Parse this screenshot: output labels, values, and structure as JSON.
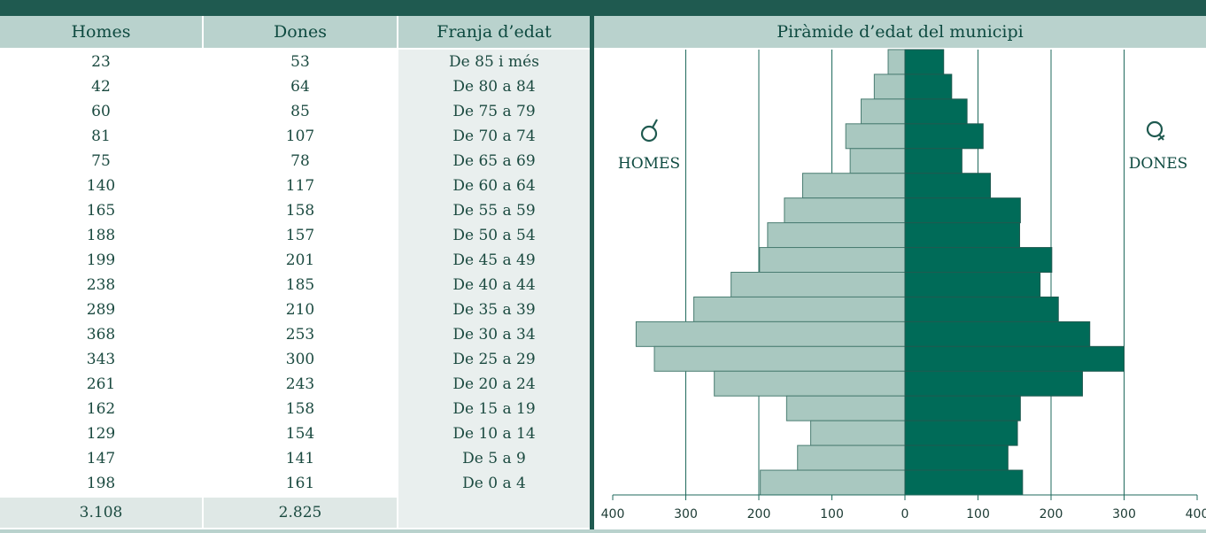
{
  "headers": {
    "homes": "Homes",
    "dones": "Dones",
    "franja": "Franja d’edat"
  },
  "totals": {
    "homes": "3.108",
    "dones": "2.825"
  },
  "rows": [
    {
      "homes": "23",
      "dones": "53",
      "franja": "De 85 i més"
    },
    {
      "homes": "42",
      "dones": "64",
      "franja": "De 80 a 84"
    },
    {
      "homes": "60",
      "dones": "85",
      "franja": "De 75 a 79"
    },
    {
      "homes": "81",
      "dones": "107",
      "franja": "De 70 a 74"
    },
    {
      "homes": "75",
      "dones": "78",
      "franja": "De 65 a 69"
    },
    {
      "homes": "140",
      "dones": "117",
      "franja": "De 60 a 64"
    },
    {
      "homes": "165",
      "dones": "158",
      "franja": "De 55 a 59"
    },
    {
      "homes": "188",
      "dones": "157",
      "franja": "De 50 a 54"
    },
    {
      "homes": "199",
      "dones": "201",
      "franja": "De 45 a 49"
    },
    {
      "homes": "238",
      "dones": "185",
      "franja": "De 40 a 44"
    },
    {
      "homes": "289",
      "dones": "210",
      "franja": "De 35 a 39"
    },
    {
      "homes": "368",
      "dones": "253",
      "franja": "De 30 a 34"
    },
    {
      "homes": "343",
      "dones": "300",
      "franja": "De 25 a 29"
    },
    {
      "homes": "261",
      "dones": "243",
      "franja": "De 20 a 24"
    },
    {
      "homes": "162",
      "dones": "158",
      "franja": "De 15 a 19"
    },
    {
      "homes": "129",
      "dones": "154",
      "franja": "De 10 a 14"
    },
    {
      "homes": "147",
      "dones": "141",
      "franja": "De 5 a 9"
    },
    {
      "homes": "198",
      "dones": "161",
      "franja": "De 0 a 4"
    }
  ],
  "chart_data": {
    "type": "bar",
    "title": "Piràmide d’edat del municipi",
    "orientation": "horizontal-pyramid",
    "categories": [
      "De 85 i més",
      "De 80 a 84",
      "De 75 a 79",
      "De 70 a 74",
      "De 65 a 69",
      "De 60 a 64",
      "De 55 a 59",
      "De 50 a 54",
      "De 45 a 49",
      "De 40 a 44",
      "De 35 a 39",
      "De 30 a 34",
      "De 25 a 29",
      "De 20 a 24",
      "De 15 a 19",
      "De 10 a 14",
      "De 5 a 9",
      "De 0 a 4"
    ],
    "series": [
      {
        "name": "HOMES",
        "side": "left",
        "color": "#a9c8c0",
        "values": [
          23,
          42,
          60,
          81,
          75,
          140,
          165,
          188,
          199,
          238,
          289,
          368,
          343,
          261,
          162,
          129,
          147,
          198
        ]
      },
      {
        "name": "DONES",
        "side": "right",
        "color": "#006b58",
        "values": [
          53,
          64,
          85,
          107,
          78,
          117,
          158,
          157,
          201,
          185,
          210,
          253,
          300,
          243,
          158,
          154,
          141,
          161
        ]
      }
    ],
    "xlim": [
      -400,
      400
    ],
    "x_ticks": [
      -400,
      -300,
      -200,
      -100,
      0,
      100,
      200,
      300,
      400
    ],
    "x_tick_labels": [
      "400",
      "300",
      "200",
      "100",
      "0",
      "100",
      "200",
      "300",
      "400"
    ],
    "grid": "vertical",
    "legend": {
      "left_label": "HOMES",
      "right_label": "DONES",
      "left_icon": "male-symbol-icon",
      "right_icon": "female-symbol-icon"
    }
  },
  "colors": {
    "accent": "#1f5a50",
    "header_bg": "#b9d2cd",
    "male_bar": "#a9c8c0",
    "female_bar": "#006b58",
    "label_column_bg": "#e9efee"
  }
}
